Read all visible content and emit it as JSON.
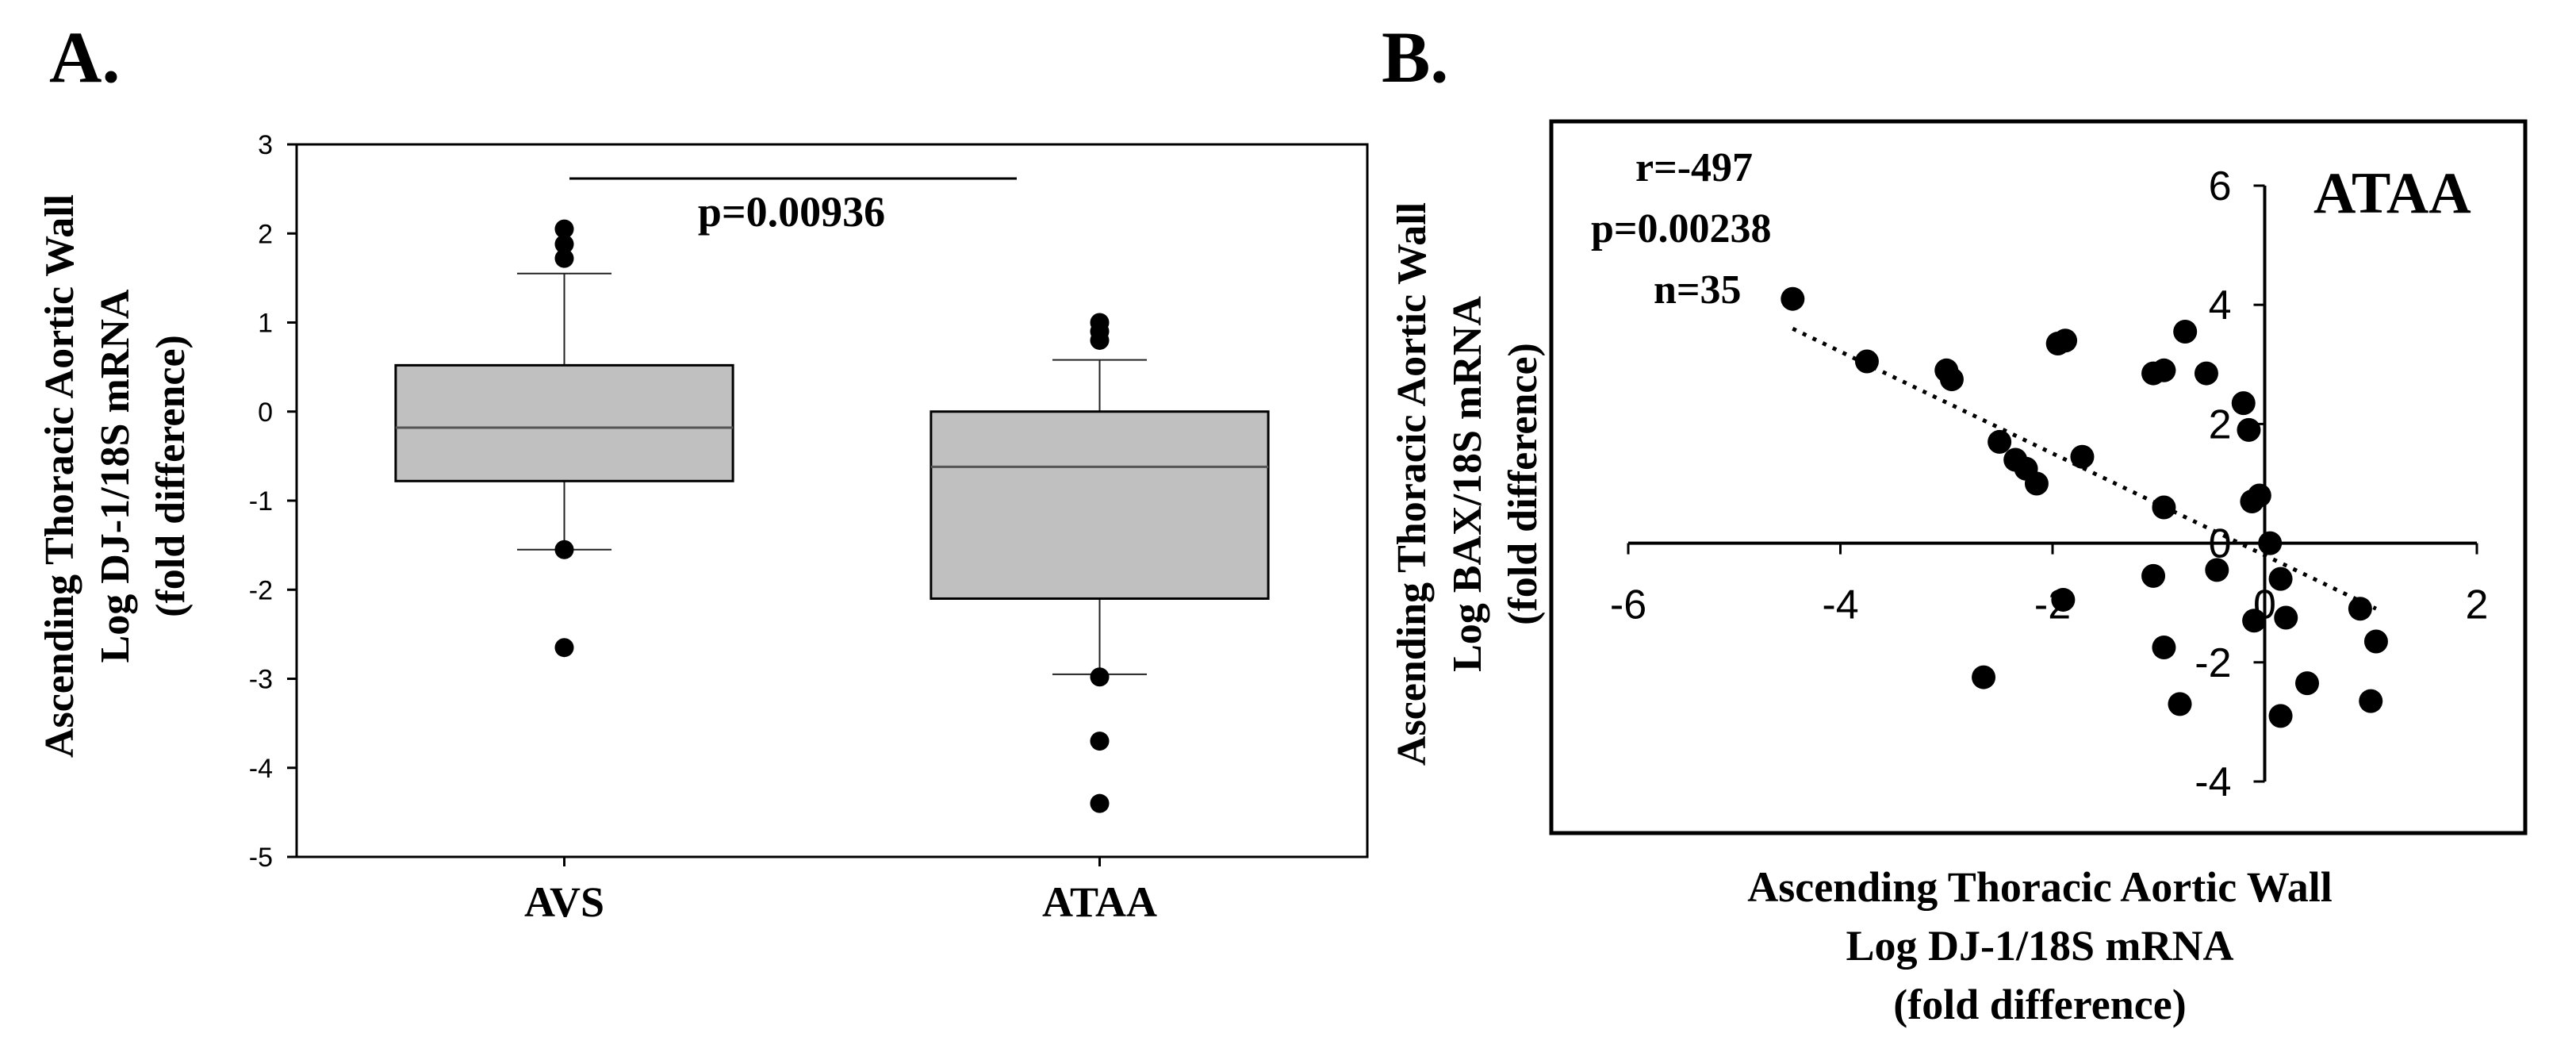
{
  "chart_data": [
    {
      "type": "box",
      "panel_label": "A.",
      "ylabel_lines": [
        "Ascending Thoracic Aortic Wall",
        "Log DJ-1/18S mRNA",
        "(fold difference)"
      ],
      "ylim": [
        -5,
        3
      ],
      "yticks": [
        "3",
        "2",
        "1",
        "0",
        "-1",
        "-2",
        "-3",
        "-4",
        "-5"
      ],
      "categories": [
        "AVS",
        "ATAA"
      ],
      "boxes": [
        {
          "category": "AVS",
          "whisker_low": -1.55,
          "q1": -0.78,
          "median": -0.18,
          "q3": 0.52,
          "whisker_high": 1.55,
          "outliers": [
            2.05,
            1.88,
            1.72,
            -1.55,
            -2.65
          ]
        },
        {
          "category": "ATAA",
          "whisker_low": -2.95,
          "q1": -2.1,
          "median": -0.62,
          "q3": 0.0,
          "whisker_high": 0.58,
          "outliers": [
            1.0,
            0.9,
            0.8,
            -2.98,
            -3.7,
            -4.4
          ]
        }
      ],
      "annotation": "p=0.00936",
      "grid": false,
      "legend": "none"
    },
    {
      "type": "scatter",
      "panel_label": "B.",
      "panel_title": "ATAA",
      "ylabel_lines": [
        "Ascending Thoracic Aortic Wall",
        "Log BAX/18S mRNA",
        "(fold difference)"
      ],
      "xlabel_lines": [
        "Ascending Thoracic Aortic Wall",
        "Log DJ-1/18S mRNA",
        "(fold difference)"
      ],
      "xlim": [
        -6,
        2
      ],
      "ylim": [
        -4,
        6
      ],
      "xticks": [
        "-6",
        "-4",
        "-2",
        "0",
        "2"
      ],
      "yticks": [
        "6",
        "4",
        "2",
        "0",
        "-2",
        "-4"
      ],
      "stats": [
        "r=-497",
        "p=0.00238",
        "n=35"
      ],
      "points": [
        [
          -4.45,
          4.1
        ],
        [
          -3.75,
          3.05
        ],
        [
          -3.0,
          2.9
        ],
        [
          -2.95,
          2.75
        ],
        [
          -1.95,
          3.35
        ],
        [
          -1.88,
          3.4
        ],
        [
          -2.5,
          1.7
        ],
        [
          -2.35,
          1.4
        ],
        [
          -2.25,
          1.25
        ],
        [
          -2.15,
          1.0
        ],
        [
          -1.72,
          1.45
        ],
        [
          -0.75,
          3.55
        ],
        [
          -0.95,
          2.9
        ],
        [
          -1.05,
          2.85
        ],
        [
          -0.55,
          2.85
        ],
        [
          -0.2,
          2.35
        ],
        [
          -0.15,
          1.9
        ],
        [
          -0.12,
          0.7
        ],
        [
          -0.05,
          0.8
        ],
        [
          -0.95,
          0.6
        ],
        [
          -1.05,
          -0.55
        ],
        [
          -0.45,
          -0.45
        ],
        [
          0.05,
          0.0
        ],
        [
          0.15,
          -0.6
        ],
        [
          -0.1,
          -1.3
        ],
        [
          0.2,
          -1.25
        ],
        [
          0.9,
          -1.1
        ],
        [
          1.05,
          -1.65
        ],
        [
          -0.95,
          -1.75
        ],
        [
          -0.8,
          -2.7
        ],
        [
          0.4,
          -2.35
        ],
        [
          1.0,
          -2.65
        ],
        [
          0.15,
          -2.9
        ],
        [
          -2.65,
          -2.25
        ],
        [
          -1.9,
          -0.95
        ]
      ],
      "trend": {
        "x_start": -4.45,
        "y_start": 3.6,
        "x_end": 1.05,
        "y_end": -1.1
      },
      "grid": false,
      "legend": "none"
    }
  ]
}
